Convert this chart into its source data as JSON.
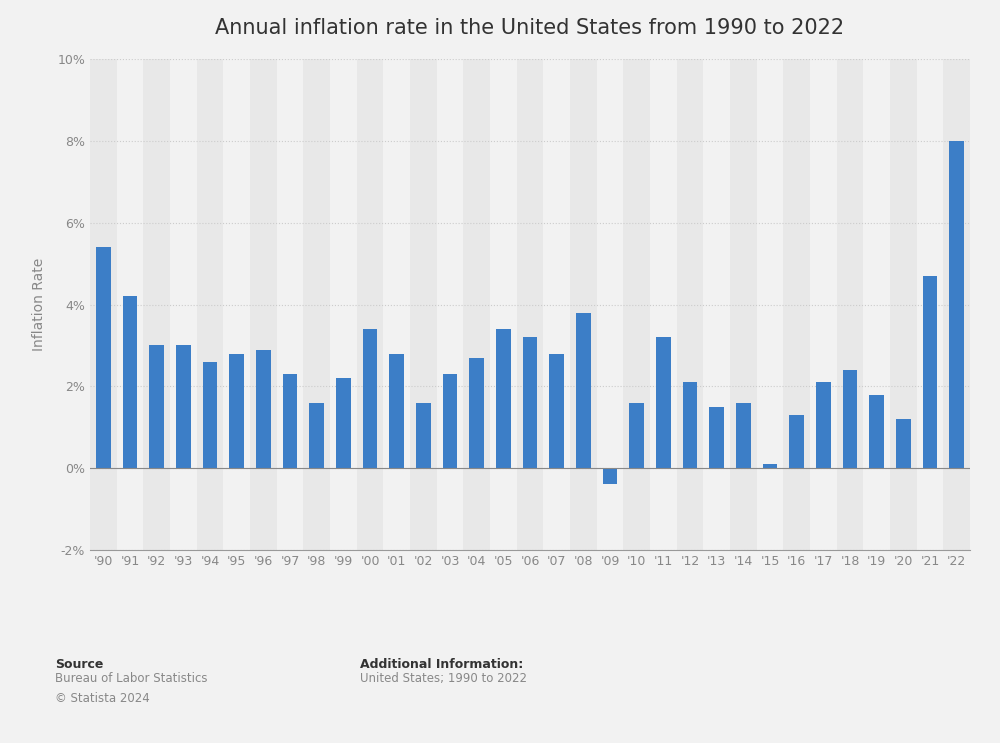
{
  "title": "Annual inflation rate in the United States from 1990 to 2022",
  "ylabel": "Inflation Rate",
  "xlabel": "",
  "background_color": "#f2f2f2",
  "plot_background_color": "#f2f2f2",
  "bar_color": "#3c7ec7",
  "stripe_color_light": "#e8e8e8",
  "stripe_color_dark": "#f2f2f2",
  "years": [
    "'90",
    "'91",
    "'92",
    "'93",
    "'94",
    "'95",
    "'96",
    "'97",
    "'98",
    "'99",
    "'00",
    "'01",
    "'02",
    "'03",
    "'04",
    "'05",
    "'06",
    "'07",
    "'08",
    "'09",
    "'10",
    "'11",
    "'12",
    "'13",
    "'14",
    "'15",
    "'16",
    "'17",
    "'18",
    "'19",
    "'20",
    "'21",
    "'22"
  ],
  "values": [
    5.4,
    4.2,
    3.0,
    3.0,
    2.6,
    2.8,
    2.9,
    2.3,
    1.6,
    2.2,
    3.4,
    2.8,
    1.6,
    2.3,
    2.7,
    3.4,
    3.2,
    2.8,
    3.8,
    -0.4,
    1.6,
    3.2,
    2.1,
    1.5,
    1.6,
    0.1,
    1.3,
    2.1,
    2.4,
    1.8,
    1.2,
    4.7,
    8.0
  ],
  "ylim": [
    -2,
    10
  ],
  "yticks": [
    -2,
    0,
    2,
    4,
    6,
    8,
    10
  ],
  "ytick_labels": [
    "-2%",
    "0%",
    "2%",
    "4%",
    "6%",
    "8%",
    "10%"
  ],
  "grid_color": "#cccccc",
  "title_fontsize": 15,
  "label_fontsize": 10,
  "tick_fontsize": 9,
  "source_label": "Source",
  "source_body": "Bureau of Labor Statistics\n© Statista 2024",
  "additional_label": "Additional Information:",
  "additional_body": "United States; 1990 to 2022"
}
